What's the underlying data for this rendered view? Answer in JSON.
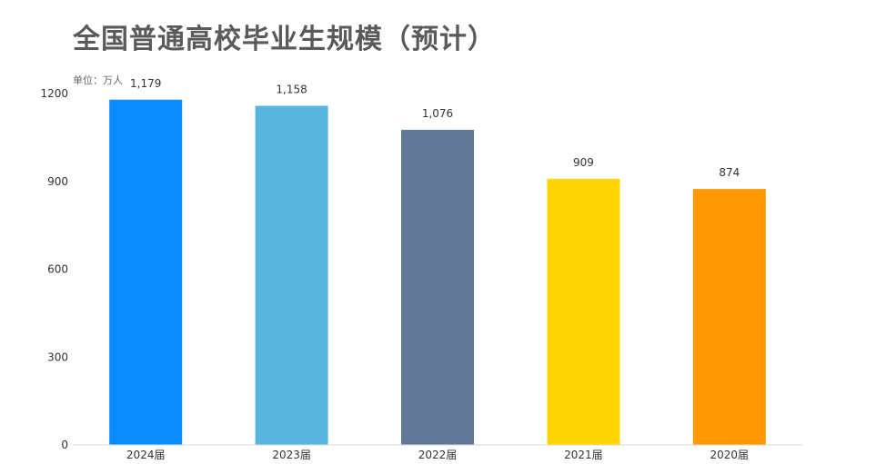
{
  "chart_data": {
    "type": "bar",
    "title": "全国普通高校毕业生规模（预计）",
    "unit_label": "单位：万人",
    "categories": [
      "2024届",
      "2023届",
      "2022届",
      "2021届",
      "2020届"
    ],
    "values": [
      1179,
      1158,
      1076,
      909,
      874
    ],
    "value_labels": [
      "1,179",
      "1,158",
      "1,076",
      "909",
      "874"
    ],
    "bar_colors": [
      "#0a8cff",
      "#5ab5dd",
      "#637796",
      "#ffd600",
      "#ff9805"
    ],
    "yticks": [
      0,
      300,
      600,
      900,
      1200
    ],
    "ylim": [
      0,
      1200
    ],
    "grid": false,
    "legend": "none"
  }
}
